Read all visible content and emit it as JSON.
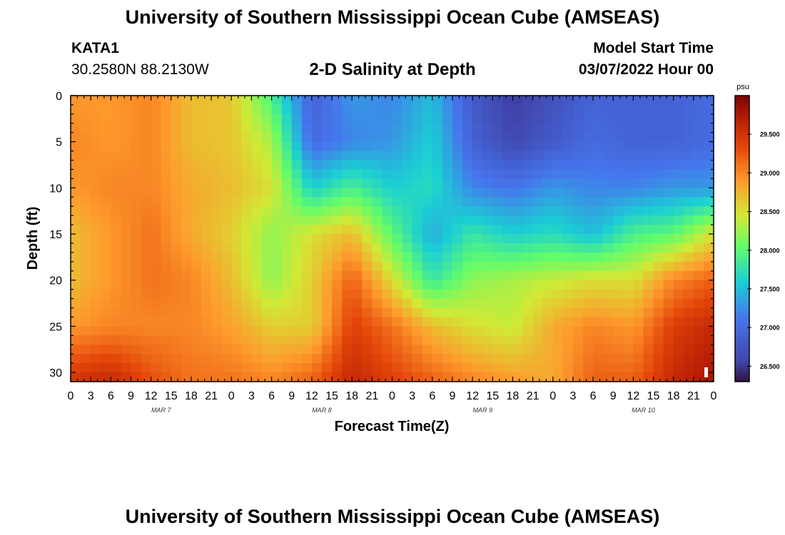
{
  "header": {
    "title": "University of Southern Mississippi Ocean Cube (AMSEAS)",
    "station_id": "KATA1",
    "station_coords": "30.2580N  88.2130W",
    "subtitle": "2-D Salinity at Depth",
    "start_label": "Model Start Time",
    "start_value": "03/07/2022 Hour 00"
  },
  "footer": {
    "title": "University of Southern Mississippi Ocean Cube (AMSEAS)"
  },
  "chart_data": {
    "type": "heatmap",
    "title": "2-D Salinity at Depth",
    "xlabel": "Forecast Time(Z)",
    "ylabel": "Depth (ft)",
    "x_range_hours": [
      0,
      96
    ],
    "ylim": [
      0,
      31
    ],
    "x_tick_labels": [
      "0",
      "3",
      "6",
      "9",
      "12",
      "15",
      "18",
      "21",
      "0",
      "3",
      "6",
      "9",
      "12",
      "15",
      "18",
      "21",
      "0",
      "3",
      "6",
      "9",
      "12",
      "15",
      "18",
      "21",
      "0",
      "3",
      "6",
      "9",
      "12",
      "15",
      "18",
      "21",
      "0"
    ],
    "day_labels": [
      "MAR 7",
      "MAR 8",
      "MAR 9",
      "MAR 10"
    ],
    "y_ticks": [
      "0",
      "5",
      "10",
      "15",
      "20",
      "25",
      "30"
    ],
    "y_tick_values": [
      0,
      5,
      10,
      15,
      20,
      25,
      30
    ],
    "colorbar": {
      "unit": "psu",
      "min": 26.3,
      "max": 30.0,
      "labels": [
        "29.500",
        "29.000",
        "28.500",
        "28.000",
        "27.500",
        "27.000",
        "26.500"
      ],
      "label_values": [
        29.5,
        29.0,
        28.5,
        28.0,
        27.5,
        27.0,
        26.5
      ]
    },
    "depth_levels_ft": [
      0,
      5,
      10,
      15,
      20,
      25,
      31
    ],
    "time_hours": [
      0,
      6,
      12,
      18,
      24,
      30,
      36,
      42,
      48,
      54,
      60,
      66,
      72,
      78,
      84,
      90,
      96
    ],
    "salinity_psu": [
      [
        28.9,
        28.9,
        29.0,
        28.7,
        28.65,
        27.9,
        26.9,
        27.3,
        27.2,
        27.5,
        26.8,
        26.5,
        26.7,
        26.9,
        26.9,
        26.9,
        27.0
      ],
      [
        29.0,
        28.9,
        29.0,
        28.7,
        28.65,
        28.3,
        27.0,
        27.2,
        27.3,
        27.6,
        26.9,
        26.6,
        26.8,
        27.0,
        26.9,
        26.9,
        27.0
      ],
      [
        28.9,
        29.0,
        29.0,
        28.8,
        28.7,
        28.5,
        27.6,
        27.9,
        27.6,
        27.7,
        27.2,
        27.1,
        27.3,
        27.2,
        27.2,
        27.3,
        27.3
      ],
      [
        28.7,
        28.9,
        29.1,
        28.8,
        28.6,
        28.2,
        28.5,
        28.7,
        28.0,
        27.4,
        27.8,
        27.6,
        27.7,
        27.5,
        27.9,
        28.0,
        28.5
      ],
      [
        28.7,
        28.9,
        29.1,
        29.0,
        28.7,
        28.2,
        28.6,
        29.2,
        28.5,
        27.8,
        28.2,
        28.3,
        28.4,
        28.5,
        28.5,
        29.0,
        29.2
      ],
      [
        28.9,
        29.0,
        29.0,
        29.0,
        28.85,
        28.6,
        28.6,
        29.4,
        29.1,
        28.7,
        28.5,
        28.4,
        28.8,
        29.0,
        28.9,
        29.4,
        29.6
      ],
      [
        29.5,
        29.6,
        29.3,
        29.1,
        29.1,
        29.0,
        29.2,
        29.6,
        29.4,
        29.2,
        29.0,
        28.9,
        28.8,
        29.2,
        29.2,
        29.6,
        29.8
      ]
    ]
  }
}
